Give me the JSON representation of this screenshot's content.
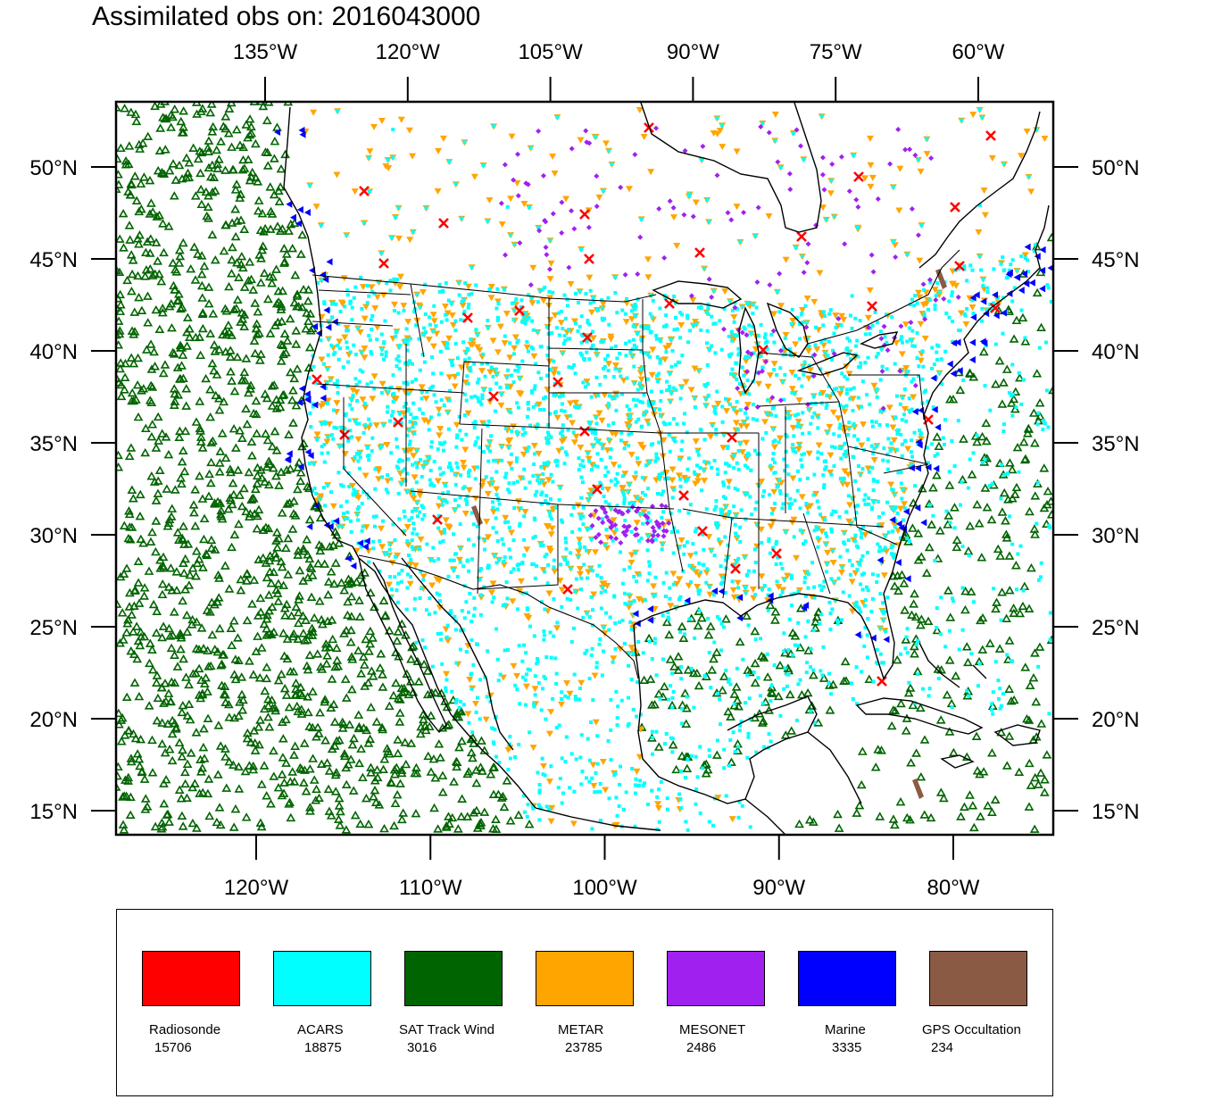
{
  "title": "Assimilated obs on: 2016043000",
  "map": {
    "top_lon_labels": [
      {
        "lon": -135,
        "label": "135°W"
      },
      {
        "lon": -120,
        "label": "120°W"
      },
      {
        "lon": -105,
        "label": "105°W"
      },
      {
        "lon": -90,
        "label": "90°W"
      },
      {
        "lon": -75,
        "label": "75°W"
      },
      {
        "lon": -60,
        "label": "60°W"
      }
    ],
    "bottom_lon_labels": [
      {
        "lon": -120,
        "label": "120°W"
      },
      {
        "lon": -110,
        "label": "110°W"
      },
      {
        "lon": -100,
        "label": "100°W"
      },
      {
        "lon": -90,
        "label": "90°W"
      },
      {
        "lon": -80,
        "label": "80°W"
      }
    ],
    "lat_labels": [
      {
        "lat": 50,
        "label": "50°N"
      },
      {
        "lat": 45,
        "label": "45°N"
      },
      {
        "lat": 40,
        "label": "40°N"
      },
      {
        "lat": 35,
        "label": "35°N"
      },
      {
        "lat": 30,
        "label": "30°N"
      },
      {
        "lat": 25,
        "label": "25°N"
      },
      {
        "lat": 20,
        "label": "20°N"
      },
      {
        "lat": 15,
        "label": "15°N"
      }
    ],
    "extent": {
      "lon_min": -128,
      "lon_max": -74.5,
      "lat_min": 13.7,
      "lat_max": 53.5
    }
  },
  "legend": [
    {
      "name": "Radiosonde",
      "count": "15706",
      "color": "#ff0000",
      "marker": "x-mark"
    },
    {
      "name": "ACARS",
      "count": "18875",
      "color": "#00ffff",
      "marker": "square"
    },
    {
      "name": "SAT Track Wind",
      "count": "3016",
      "color": "#006400",
      "marker": "triangle-up"
    },
    {
      "name": "METAR",
      "count": "23785",
      "color": "#ffa500",
      "marker": "triangle-down"
    },
    {
      "name": "MESONET",
      "count": "2486",
      "color": "#a020f0",
      "marker": "diamond"
    },
    {
      "name": "Marine",
      "count": "3335",
      "color": "#0000ff",
      "marker": "triangle-left"
    },
    {
      "name": "GPS Occultation",
      "count": "234",
      "color": "#8b5a45",
      "marker": "band"
    }
  ]
}
